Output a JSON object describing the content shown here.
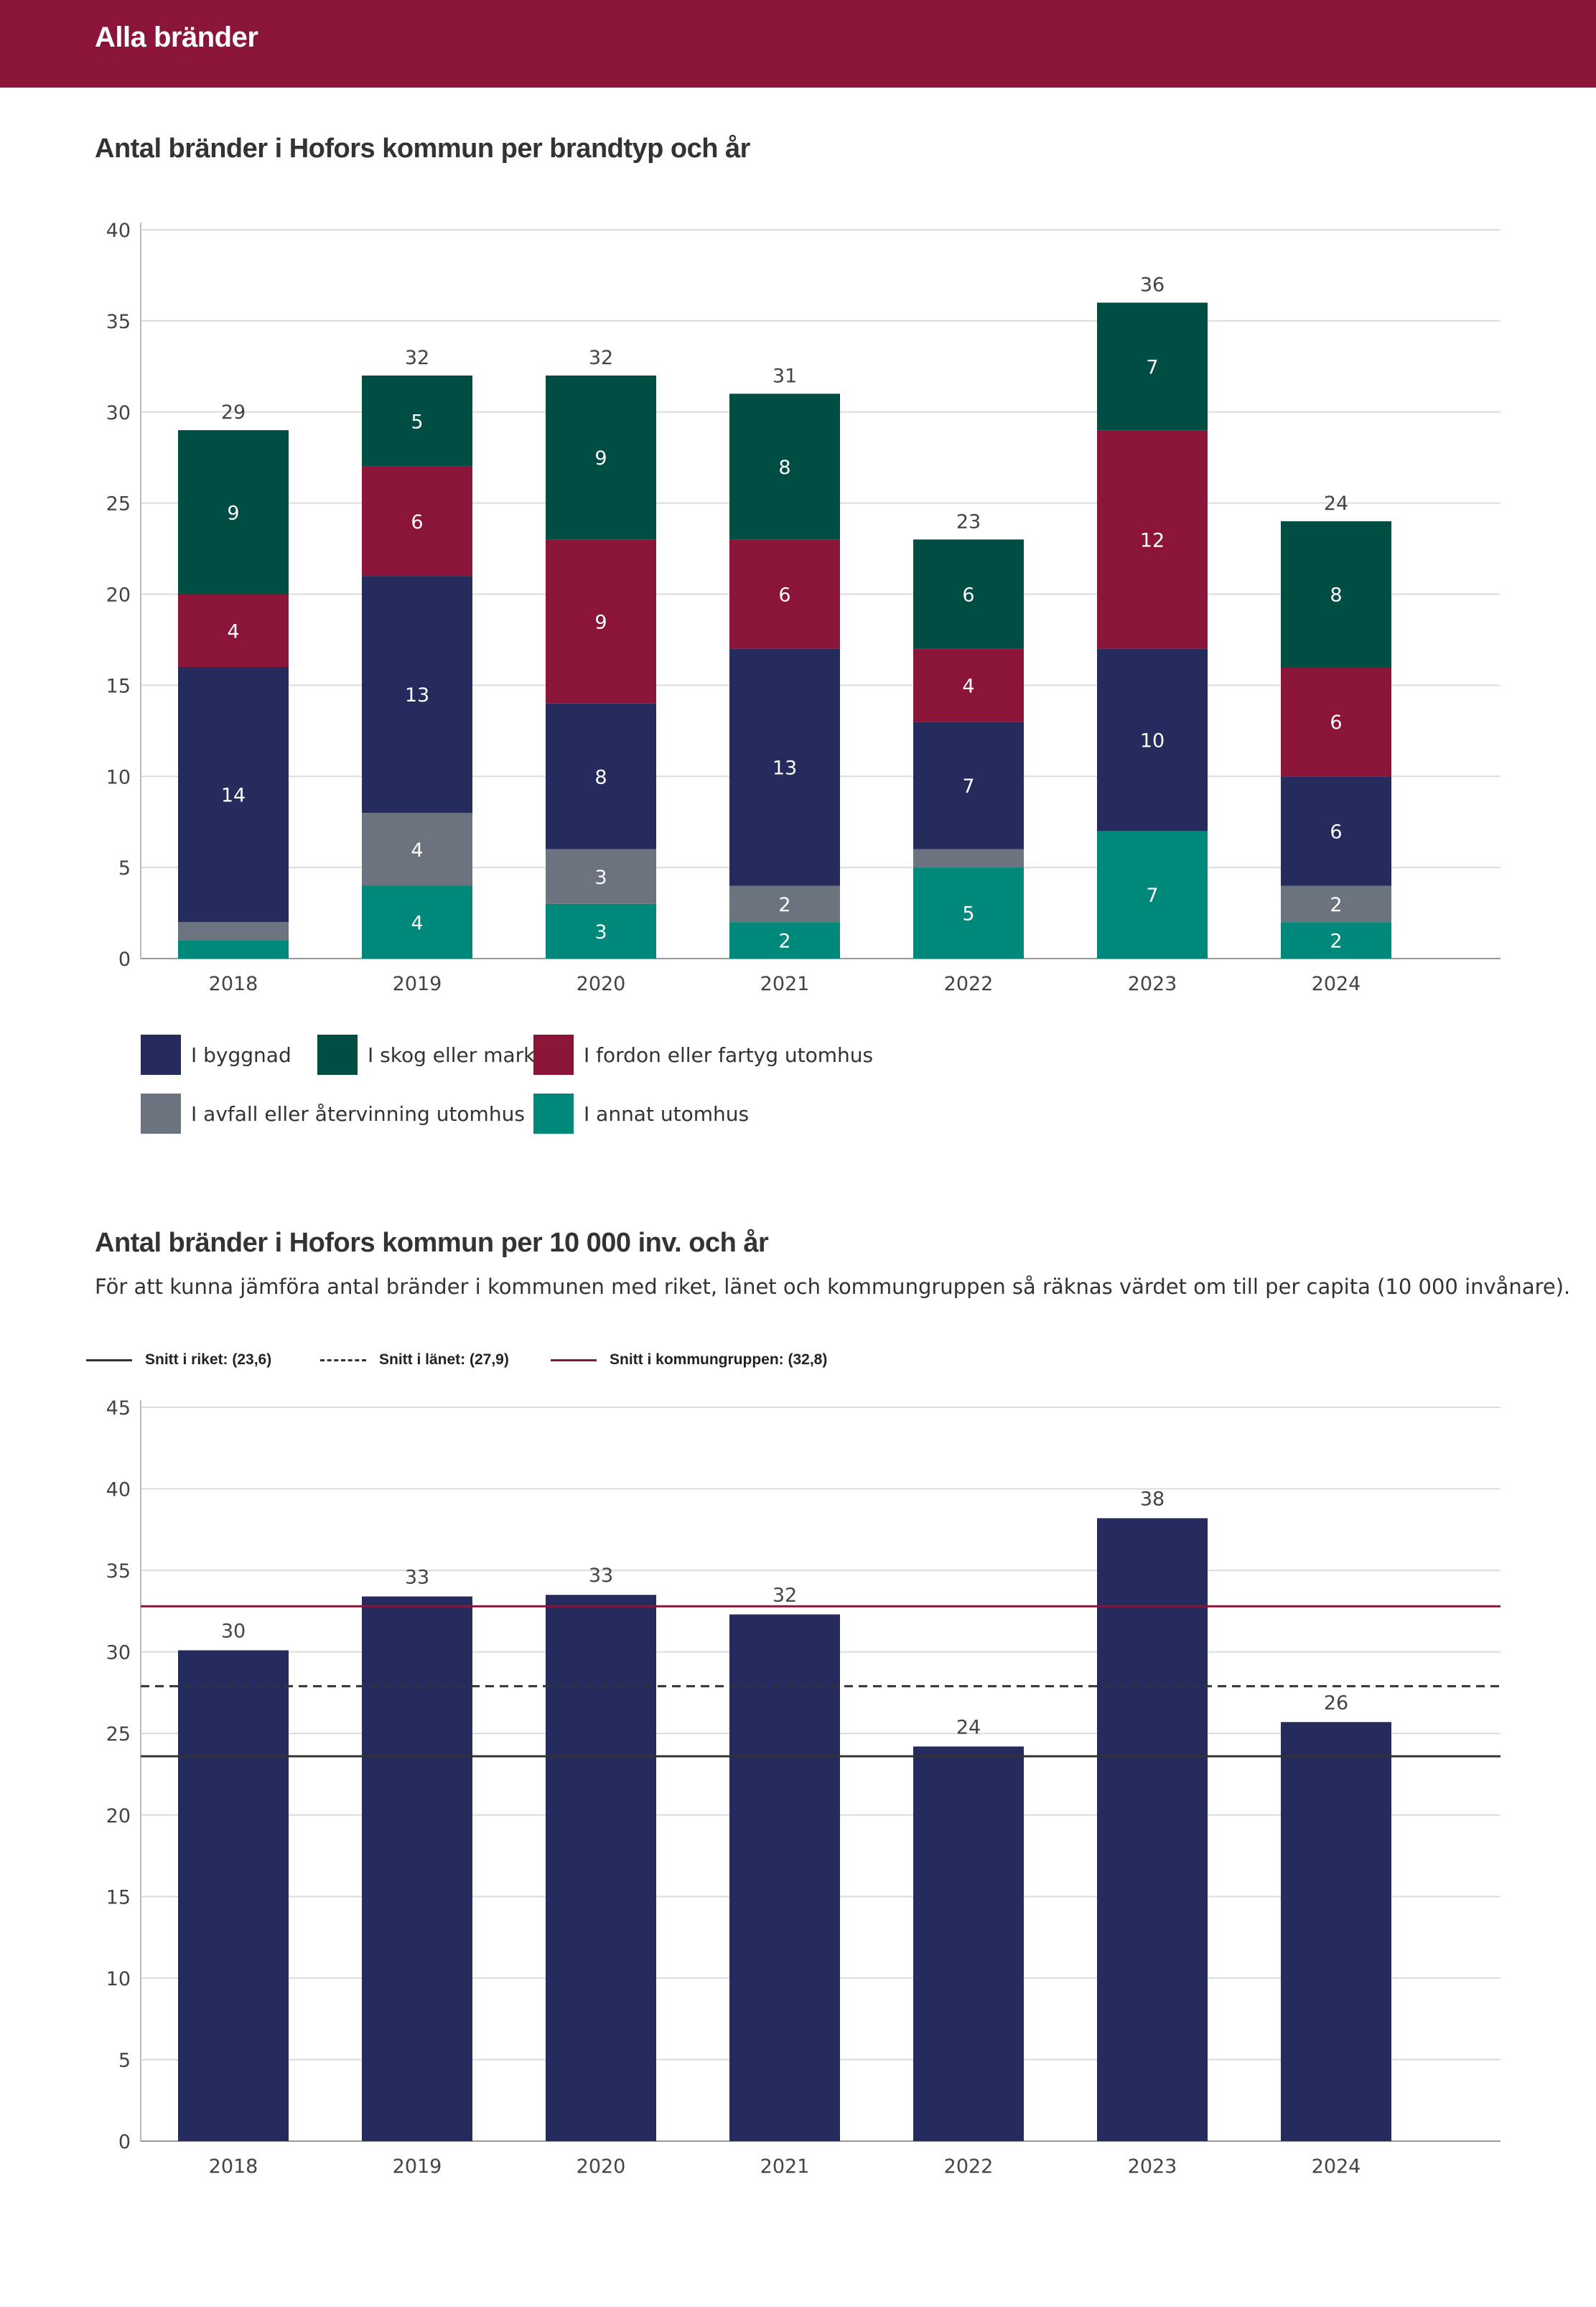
{
  "header": {
    "title": "Alla bränder"
  },
  "colors": {
    "header_bg": "#8a1538",
    "byggnad": "#252b5c",
    "skog": "#004d43",
    "fordon": "#8a1538",
    "avfall": "#6b737f",
    "annat": "#00887a",
    "bar2": "#252b5c",
    "riket": "#333333",
    "lanet": "#333333",
    "kommungrupp": "#8a1538"
  },
  "chart1": {
    "title": "Antal bränder i Hofors kommun per brandtyp och år",
    "legend": [
      {
        "key": "byggnad",
        "label": "I byggnad"
      },
      {
        "key": "skog",
        "label": "I skog eller mark"
      },
      {
        "key": "fordon",
        "label": "I fordon eller fartyg utomhus"
      },
      {
        "key": "avfall",
        "label": "I avfall eller återvinning utomhus"
      },
      {
        "key": "annat",
        "label": "I annat utomhus"
      }
    ]
  },
  "chart2": {
    "title": "Antal bränder i Hofors kommun per 10 000 inv. och år",
    "description": "För att kunna jämföra antal bränder i kommunen med riket, länet och kommungruppen så räknas värdet om till per capita (10 000 invånare).",
    "legend": [
      {
        "key": "riket",
        "label": "Snitt i riket: (23,6)"
      },
      {
        "key": "lanet",
        "label": "Snitt i länet: (27,9)"
      },
      {
        "key": "kommungrupp",
        "label": "Snitt i kommungruppen: (32,8)"
      }
    ]
  },
  "chart_data": [
    {
      "type": "bar",
      "stacked": true,
      "title": "Antal bränder i Hofors kommun per brandtyp och år",
      "categories": [
        "2018",
        "2019",
        "2020",
        "2021",
        "2022",
        "2023",
        "2024"
      ],
      "series": [
        {
          "key": "annat",
          "name": "I annat utomhus",
          "values": [
            1,
            4,
            3,
            2,
            5,
            7,
            2
          ],
          "labels": [
            "",
            "4",
            "3",
            "2",
            "5",
            "7",
            "2"
          ]
        },
        {
          "key": "avfall",
          "name": "I avfall eller återvinning utomhus",
          "values": [
            1,
            4,
            3,
            2,
            1,
            0,
            2
          ],
          "labels": [
            "",
            "4",
            "3",
            "2",
            "",
            "",
            "2"
          ]
        },
        {
          "key": "byggnad",
          "name": "I byggnad",
          "values": [
            14,
            13,
            8,
            13,
            7,
            10,
            6
          ],
          "labels": [
            "14",
            "13",
            "8",
            "13",
            "7",
            "10",
            "6"
          ]
        },
        {
          "key": "fordon",
          "name": "I fordon eller fartyg utomhus",
          "values": [
            4,
            6,
            9,
            6,
            4,
            12,
            6
          ],
          "labels": [
            "4",
            "6",
            "9",
            "6",
            "4",
            "12",
            "6"
          ]
        },
        {
          "key": "skog",
          "name": "I skog eller mark",
          "values": [
            9,
            5,
            9,
            8,
            6,
            7,
            8
          ],
          "labels": [
            "9",
            "5",
            "9",
            "8",
            "6",
            "7",
            "8"
          ]
        }
      ],
      "totals": [
        "29",
        "32",
        "32",
        "31",
        "23",
        "36",
        "24"
      ],
      "ylim": [
        0,
        40
      ],
      "yticks": [
        "0",
        "5",
        "10",
        "15",
        "20",
        "25",
        "30",
        "35",
        "40"
      ],
      "legend_position": "bottom"
    },
    {
      "type": "bar",
      "title": "Antal bränder i Hofors kommun per 10 000 inv. och år",
      "categories": [
        "2018",
        "2019",
        "2020",
        "2021",
        "2022",
        "2023",
        "2024"
      ],
      "values": [
        30.1,
        33.4,
        33.5,
        32.3,
        24.2,
        38.2,
        25.7
      ],
      "labels": [
        "30",
        "33",
        "33",
        "32",
        "24",
        "38",
        "26"
      ],
      "reference_lines": [
        {
          "key": "riket",
          "value": 23.6,
          "style": "solid"
        },
        {
          "key": "lanet",
          "value": 27.9,
          "style": "dashed"
        },
        {
          "key": "kommungrupp",
          "value": 32.8,
          "style": "solid"
        }
      ],
      "ylim": [
        0,
        45
      ],
      "yticks": [
        "0",
        "5",
        "10",
        "15",
        "20",
        "25",
        "30",
        "35",
        "40",
        "45"
      ],
      "legend_position": "top"
    }
  ]
}
